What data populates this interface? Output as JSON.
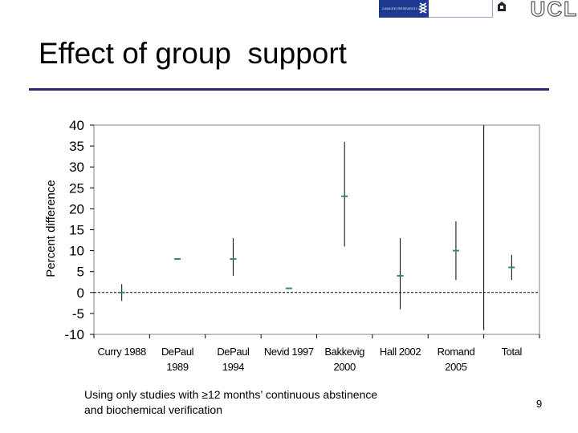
{
  "header": {
    "cr_logo_text": "CANCER RESEARCH UK",
    "ucl_logo_text": "UCL"
  },
  "slide": {
    "title": "Effect of group  support",
    "footnote_line1": "Using only studies with ≥12 months’ continuous abstinence",
    "footnote_line2": "and biochemical verification",
    "page_number": "9"
  },
  "colors": {
    "title_rule": "#2b2a6e",
    "marker": "#2a8a80",
    "error_bar": "#000000",
    "zero_line": "#000000"
  },
  "chart_data": {
    "type": "error-bar",
    "ylabel": "Percent difference",
    "xlabel": "",
    "ylim": [
      -10,
      40
    ],
    "yticks": [
      -10,
      -5,
      0,
      5,
      10,
      15,
      20,
      25,
      30,
      35,
      40
    ],
    "reference_line": 0,
    "categories": [
      [
        "Curry 1988"
      ],
      [
        "DePaul",
        "1989"
      ],
      [
        "DePaul",
        "1994"
      ],
      [
        "Nevid 1997"
      ],
      [
        "Bakkevig",
        "2000"
      ],
      [
        "Hall 2002"
      ],
      [
        "Romand",
        "2005"
      ],
      [
        "Total"
      ]
    ],
    "estimates": [
      0,
      8,
      8,
      1,
      23,
      4,
      10,
      6
    ],
    "ci_low": [
      -2,
      null,
      4,
      null,
      11,
      -4,
      3,
      3
    ],
    "ci_high": [
      2,
      null,
      13,
      null,
      36,
      13,
      17,
      9
    ],
    "extra_lines": [
      {
        "x_between": [
          6,
          7
        ],
        "from": -9,
        "to": 40
      }
    ]
  }
}
